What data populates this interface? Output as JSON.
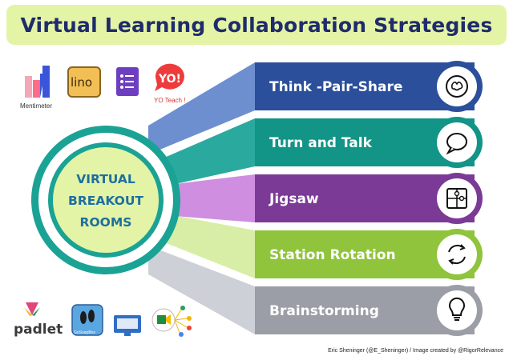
{
  "title": "Virtual Learning Collaboration Strategies",
  "center": {
    "lines": [
      "VIRTUAL",
      "BREAKOUT",
      "ROOMS"
    ]
  },
  "rows": [
    {
      "label": "Think -Pair-Share",
      "color": "#2c4f9c",
      "fan_color": "#6d8fd0",
      "icon": "brain-icon"
    },
    {
      "label": "Turn and Talk",
      "color": "#129487",
      "fan_color": "#2aaa9e",
      "icon": "speech-bubble-icon"
    },
    {
      "label": "Jigsaw",
      "color": "#7a3a96",
      "fan_color": "#cf8ee0",
      "icon": "puzzle-icon"
    },
    {
      "label": "Station Rotation",
      "color": "#8fc43c",
      "fan_color": "#d8eea6",
      "icon": "rotation-arrows-icon"
    },
    {
      "label": "Brainstorming",
      "color": "#9b9ea6",
      "fan_color": "#cdd0d6",
      "icon": "lightbulb-icon"
    }
  ],
  "apps_top": [
    {
      "name": "Mentimeter",
      "icon": "mentimeter-logo"
    },
    {
      "name": "lino",
      "icon": "lino-logo"
    },
    {
      "name": "",
      "icon": "google-forms-icon"
    },
    {
      "name": "YO!",
      "caption": "YO Teach !",
      "icon": "yo-teach-logo"
    }
  ],
  "apps_bottom": [
    {
      "name": "padlet",
      "icon": "padlet-logo"
    },
    {
      "name": "GoSoapBox",
      "icon": "gosoapbox-logo"
    },
    {
      "name": "",
      "icon": "classroom-screen-icon"
    },
    {
      "name": "",
      "icon": "google-meet-share-icon"
    }
  ],
  "credit": "Eric Sheninger (@E_Sheninger) / Image created by @RigorRelevance"
}
